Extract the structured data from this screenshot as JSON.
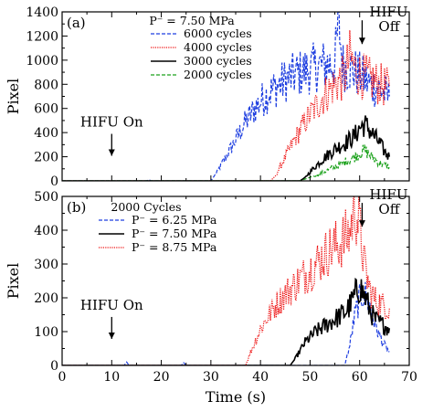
{
  "chart_data": [
    {
      "type": "line",
      "panel_label": "(a)",
      "legend_title": "P⁻ = 7.50 MPa",
      "ylabel": "Pixel",
      "xlim": [
        0,
        70
      ],
      "ylim": [
        0,
        1400
      ],
      "yticks": [
        "0",
        "200",
        "400",
        "600",
        "800",
        "1000",
        "1200",
        "1400"
      ],
      "legend_position": "top-center",
      "annotations": [
        {
          "text": "HIFU On",
          "x": 10,
          "y": 450
        },
        {
          "text": "HIFU Off",
          "x": 60.5,
          "y": 1300
        }
      ],
      "series": [
        {
          "name": "6000 cycles",
          "color": "#1f3fe0",
          "style": "dashed",
          "x": [
            0,
            17,
            17.5,
            18,
            30,
            31,
            33,
            35,
            37,
            39,
            41,
            43,
            45,
            47,
            49,
            51,
            53,
            55,
            55.8,
            56.5,
            58,
            60,
            62,
            64,
            66
          ],
          "y": [
            0,
            0,
            10,
            0,
            0,
            60,
            200,
            350,
            500,
            620,
            720,
            790,
            850,
            900,
            930,
            960,
            980,
            1000,
            1360,
            980,
            950,
            900,
            820,
            780,
            700
          ]
        },
        {
          "name": "4000 cycles",
          "color": "#ee1111",
          "style": "dotted",
          "x": [
            0,
            42,
            43,
            45,
            47,
            49,
            51,
            53,
            55,
            57,
            58,
            59,
            60,
            61,
            62,
            64,
            66
          ],
          "y": [
            0,
            0,
            40,
            200,
            360,
            500,
            620,
            730,
            820,
            880,
            1050,
            960,
            900,
            880,
            860,
            820,
            780
          ]
        },
        {
          "name": "3000 cycles",
          "color": "#000000",
          "style": "solid",
          "x": [
            0,
            48,
            49,
            51,
            53,
            55,
            57,
            58,
            59,
            60,
            61,
            62,
            64,
            65,
            66
          ],
          "y": [
            0,
            0,
            30,
            120,
            200,
            270,
            320,
            350,
            380,
            450,
            480,
            430,
            320,
            250,
            200
          ]
        },
        {
          "name": "2000 cycles",
          "color": "#1aa11a",
          "style": "dashed",
          "x": [
            0,
            48,
            50,
            52,
            54,
            56,
            58,
            60,
            61,
            62,
            64,
            66
          ],
          "y": [
            0,
            0,
            30,
            60,
            100,
            140,
            180,
            230,
            260,
            220,
            150,
            120
          ]
        }
      ]
    },
    {
      "type": "line",
      "panel_label": "(b)",
      "legend_title": "2000 Cycles",
      "xlabel": "Time (s)",
      "ylabel": "Pixel",
      "xlim": [
        0,
        70
      ],
      "ylim": [
        0,
        500
      ],
      "xticks": [
        "0",
        "10",
        "20",
        "30",
        "40",
        "50",
        "60",
        "70"
      ],
      "yticks": [
        "0",
        "100",
        "200",
        "300",
        "400",
        "500"
      ],
      "legend_position": "top-left",
      "annotations": [
        {
          "text": "HIFU On",
          "x": 10,
          "y": 165
        },
        {
          "text": "HIFU Off",
          "x": 60.5,
          "y": 470
        }
      ],
      "series": [
        {
          "name": "P⁻ = 6.25 MPa",
          "color": "#1f3fe0",
          "style": "dashed",
          "x": [
            0,
            12.5,
            13,
            13.5,
            24,
            24.5,
            25,
            57,
            58,
            59,
            60,
            61,
            62,
            63,
            64,
            65,
            66
          ],
          "y": [
            0,
            0,
            10,
            0,
            0,
            8,
            0,
            0,
            60,
            150,
            200,
            220,
            180,
            130,
            90,
            60,
            40
          ]
        },
        {
          "name": "P⁻ = 7.50 MPa",
          "color": "#000000",
          "style": "solid",
          "x": [
            0,
            46,
            47,
            49,
            51,
            53,
            55,
            57,
            58,
            59,
            60,
            61,
            62,
            63,
            64,
            65,
            66
          ],
          "y": [
            0,
            0,
            20,
            70,
            100,
            120,
            140,
            160,
            180,
            210,
            240,
            210,
            170,
            140,
            130,
            120,
            110
          ]
        },
        {
          "name": "P⁻ = 8.75 MPa",
          "color": "#ee1111",
          "style": "dotted",
          "x": [
            0,
            37,
            38,
            40,
            42,
            44,
            46,
            48,
            50,
            52,
            54,
            56,
            58,
            59,
            60,
            61,
            62,
            63,
            64,
            65,
            66
          ],
          "y": [
            0,
            0,
            40,
            110,
            160,
            200,
            230,
            260,
            290,
            320,
            350,
            370,
            400,
            480,
            420,
            300,
            230,
            200,
            190,
            180,
            170
          ]
        }
      ]
    }
  ]
}
